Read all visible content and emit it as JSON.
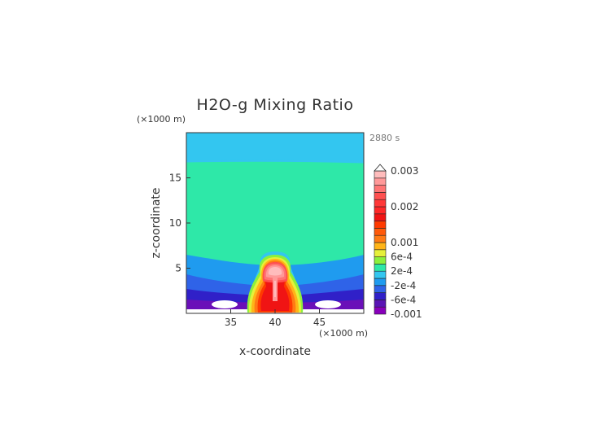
{
  "chart_data": {
    "type": "heatmap",
    "title": "H2O-g Mixing Ratio",
    "time_label": "2880 s",
    "xlabel": "x-coordinate",
    "ylabel": "z-coordinate",
    "x_units": "(×1000 m)",
    "z_units": "(×1000 m)",
    "xlim": [
      30,
      50
    ],
    "ylim": [
      0,
      20
    ],
    "x_ticks": [
      "35",
      "40",
      "45"
    ],
    "x_tick_values": [
      35,
      40,
      45
    ],
    "y_ticks": [
      "5",
      "10",
      "15"
    ],
    "y_tick_values": [
      5,
      10,
      15
    ],
    "colorbar": {
      "labels": [
        "0.003",
        "0.002",
        "0.001",
        "6e-4",
        "2e-4",
        "-2e-4",
        "-6e-4",
        "-0.001"
      ],
      "label_values": [
        0.003,
        0.002,
        0.001,
        0.0006,
        0.0002,
        -0.0002,
        -0.0006,
        -0.001
      ],
      "levels": [
        -0.001,
        -0.0008,
        -0.0006,
        -0.0004,
        -0.0002,
        0,
        0.0002,
        0.0004,
        0.0006,
        0.0008,
        0.001,
        0.0012,
        0.0014,
        0.0016,
        0.0018,
        0.002,
        0.0022,
        0.0024,
        0.0026,
        0.0028,
        0.003
      ],
      "colors": [
        "#8800bb",
        "#5a14b4",
        "#3020c8",
        "#2f63e8",
        "#1f9bef",
        "#33c6f0",
        "#2ee8a8",
        "#8cf03c",
        "#e6f03a",
        "#ffb418",
        "#ff7a14",
        "#ff5a0a",
        "#ff3a00",
        "#f01414",
        "#ff2828",
        "#ff3838",
        "#ff5050",
        "#ff7474",
        "#ff9999",
        "#ffbcbc"
      ],
      "extend_max": true
    },
    "layers": [
      {
        "z_range": [
          16.7,
          20
        ],
        "value_range": [
          -0.0002,
          0
        ],
        "description_color": "#33c6f0"
      },
      {
        "z_range": [
          6,
          16.7
        ],
        "value_range": [
          0,
          0.0002
        ],
        "description_color": "#2ee8a8"
      },
      {
        "z_range": [
          0,
          6
        ],
        "value_range": [
          -0.001,
          -0.0002
        ],
        "description_color": "#2f63e8"
      }
    ],
    "plume": {
      "x_center": 40,
      "z_top": 6.7,
      "max_value": 0.003
    }
  }
}
